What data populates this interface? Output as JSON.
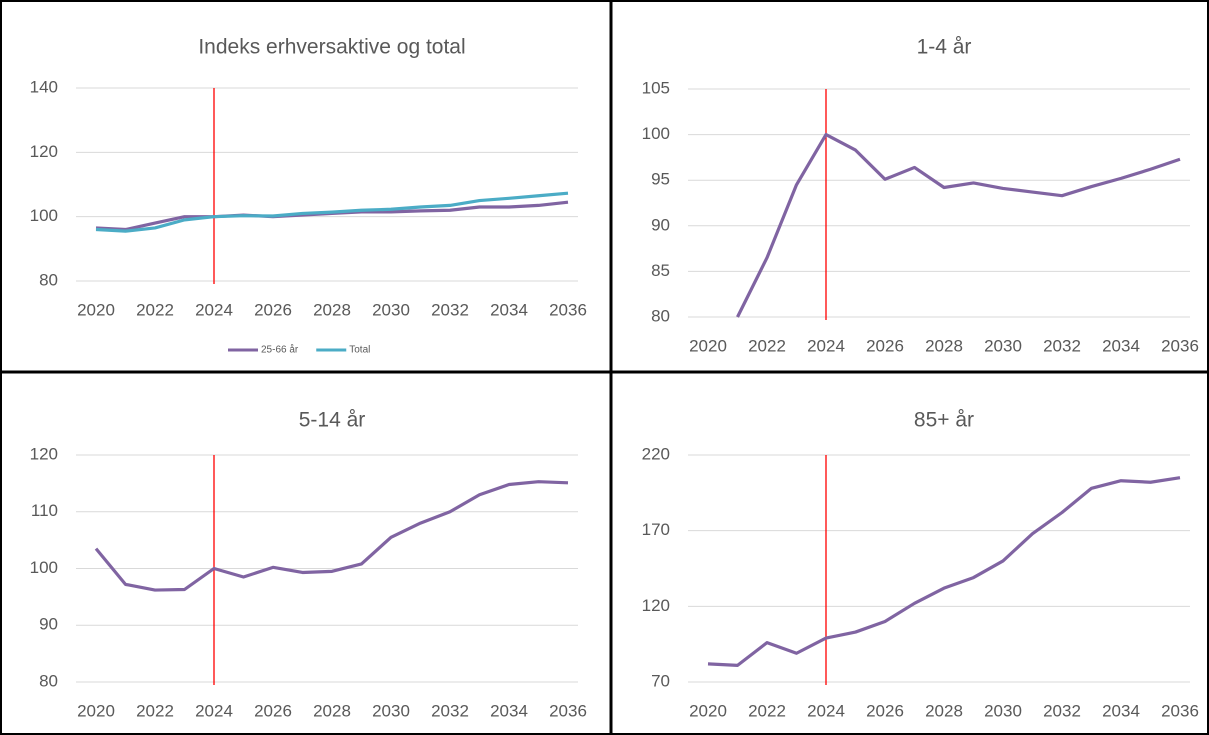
{
  "chart_data": [
    {
      "type": "line",
      "title": "Indeks erhversaktive og total",
      "x": [
        2020,
        2021,
        2022,
        2023,
        2024,
        2025,
        2026,
        2027,
        2028,
        2029,
        2030,
        2031,
        2032,
        2033,
        2034,
        2035,
        2036
      ],
      "xlim": [
        2020,
        2036
      ],
      "xticks": [
        2020,
        2022,
        2024,
        2026,
        2028,
        2030,
        2032,
        2034,
        2036
      ],
      "ylim": [
        80,
        140
      ],
      "yticks": [
        80,
        100,
        120,
        140
      ],
      "grid": true,
      "legend": "bottom",
      "vline": 2024,
      "vline_color": "#ff0000",
      "series": [
        {
          "name": "25-66 år",
          "color": "#8064a2",
          "values": [
            96.5,
            96,
            98,
            100,
            100,
            100.5,
            100,
            100.5,
            101,
            101.5,
            101.5,
            101.8,
            102,
            103,
            103,
            103.5,
            104.5
          ]
        },
        {
          "name": "Total",
          "color": "#4bacc6",
          "values": [
            96,
            95.5,
            96.5,
            99,
            100,
            100.3,
            100.2,
            101,
            101.4,
            102,
            102.3,
            103,
            103.5,
            105,
            105.7,
            106.5,
            107.3
          ]
        }
      ]
    },
    {
      "type": "line",
      "title": "1-4 år",
      "x": [
        2020,
        2021,
        2022,
        2023,
        2024,
        2025,
        2026,
        2027,
        2028,
        2029,
        2030,
        2031,
        2032,
        2033,
        2034,
        2035,
        2036
      ],
      "xlim": [
        2020,
        2036
      ],
      "xticks": [
        2020,
        2022,
        2024,
        2026,
        2028,
        2030,
        2032,
        2034,
        2036
      ],
      "ylim": [
        80,
        105
      ],
      "yticks": [
        80,
        85,
        90,
        95,
        100,
        105
      ],
      "grid": true,
      "vline": 2024,
      "vline_color": "#ff0000",
      "series": [
        {
          "color": "#8064a2",
          "values": [
            null,
            80,
            86.5,
            94.5,
            100,
            98.3,
            95.1,
            96.4,
            94.2,
            94.7,
            94.1,
            93.7,
            93.3,
            94.3,
            95.2,
            96.2,
            97.3
          ]
        }
      ]
    },
    {
      "type": "line",
      "title": "5-14 år",
      "x": [
        2020,
        2021,
        2022,
        2023,
        2024,
        2025,
        2026,
        2027,
        2028,
        2029,
        2030,
        2031,
        2032,
        2033,
        2034,
        2035,
        2036
      ],
      "xlim": [
        2020,
        2036
      ],
      "xticks": [
        2020,
        2022,
        2024,
        2026,
        2028,
        2030,
        2032,
        2034,
        2036
      ],
      "ylim": [
        80,
        120
      ],
      "yticks": [
        80,
        90,
        100,
        110,
        120
      ],
      "grid": true,
      "vline": 2024,
      "vline_color": "#ff0000",
      "series": [
        {
          "color": "#8064a2",
          "values": [
            103.5,
            97.2,
            96.2,
            96.3,
            100,
            98.5,
            100.2,
            99.3,
            99.5,
            100.8,
            105.5,
            108,
            110,
            113,
            114.8,
            115.3,
            115.1
          ]
        }
      ]
    },
    {
      "type": "line",
      "title": "85+ år",
      "x": [
        2020,
        2021,
        2022,
        2023,
        2024,
        2025,
        2026,
        2027,
        2028,
        2029,
        2030,
        2031,
        2032,
        2033,
        2034,
        2035,
        2036
      ],
      "xlim": [
        2020,
        2036
      ],
      "xticks": [
        2020,
        2022,
        2024,
        2026,
        2028,
        2030,
        2032,
        2034,
        2036
      ],
      "ylim": [
        70,
        220
      ],
      "yticks": [
        70,
        120,
        170,
        220
      ],
      "grid": true,
      "vline": 2024,
      "vline_color": "#ff0000",
      "series": [
        {
          "color": "#8064a2",
          "values": [
            82,
            81,
            96,
            89,
            99,
            103,
            110,
            122,
            132,
            139,
            150,
            168,
            182,
            198,
            203,
            202,
            205
          ]
        }
      ]
    }
  ]
}
